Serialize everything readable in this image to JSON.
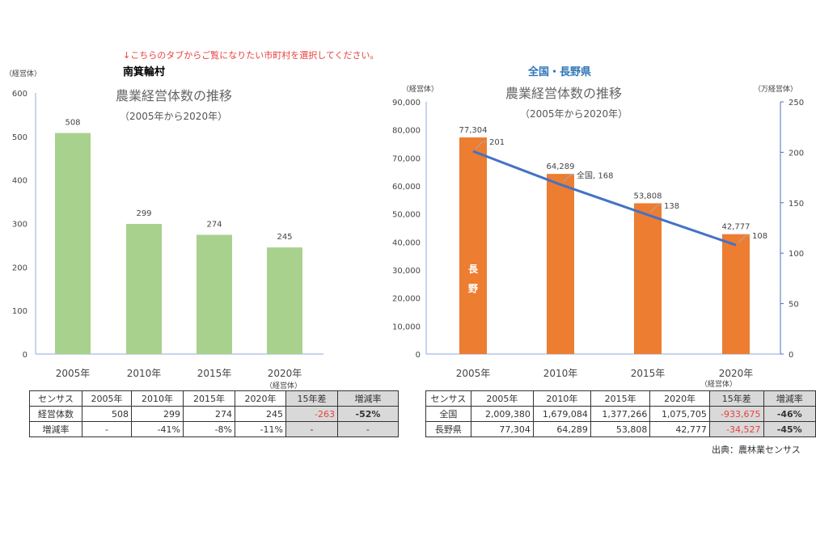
{
  "note": "↓こちらのタブからご覧になりたい市町村を選択してください。",
  "source": "出典：農林業センサス",
  "chart_data": [
    {
      "type": "bar",
      "header": "南箕輪村",
      "title": "農業経営体数の推移",
      "subtitle": "（2005年から2020年）",
      "ylabel": "（経営体）",
      "xunit": "（経営体）",
      "categories": [
        "2005年",
        "2010年",
        "2015年",
        "2020年"
      ],
      "values": [
        508,
        299,
        274,
        245
      ],
      "ylim": [
        0,
        600
      ],
      "yticks": [
        0,
        100,
        200,
        300,
        400,
        500,
        600
      ],
      "color": "#a9d18e",
      "grid": false
    },
    {
      "type": "bar+line",
      "header": "全国・長野県",
      "title": "農業経営体数の推移",
      "subtitle": "（2005年から2020年）",
      "ylabel": "（経営体）",
      "y2label": "（万経営体）",
      "xunit": "（経営体）",
      "categories": [
        "2005年",
        "2010年",
        "2015年",
        "2020年"
      ],
      "bar_label": "長野",
      "series": [
        {
          "name": "長野",
          "axis": "left",
          "values": [
            77304,
            64289,
            53808,
            42777
          ],
          "labels": [
            "77,304",
            "64,289",
            "53,808",
            "42,777"
          ],
          "color": "#ed7d31"
        },
        {
          "name": "全国",
          "axis": "right",
          "values": [
            201,
            168,
            138,
            108
          ],
          "labels": [
            "201",
            "全国, 168",
            "138",
            "108"
          ],
          "color": "#4472c4"
        }
      ],
      "ylim": [
        0,
        90000
      ],
      "yticks": [
        "0",
        "10,000",
        "20,000",
        "30,000",
        "40,000",
        "50,000",
        "60,000",
        "70,000",
        "80,000",
        "90,000"
      ],
      "y2lim": [
        0,
        250
      ],
      "y2ticks": [
        "0",
        "50",
        "100",
        "150",
        "200",
        "250"
      ],
      "grid": false
    }
  ],
  "table_left": {
    "header": [
      "センサス",
      "2005年",
      "2010年",
      "2015年",
      "2020年",
      "15年差",
      "増減率"
    ],
    "rows": [
      [
        "経営体数",
        "508",
        "299",
        "274",
        "245",
        "-263",
        "-52%"
      ],
      [
        "増減率",
        "-",
        "-41%",
        "-8%",
        "-11%",
        "-",
        "-"
      ]
    ]
  },
  "table_right": {
    "header": [
      "センサス",
      "2005年",
      "2010年",
      "2015年",
      "2020年",
      "15年差",
      "増減率"
    ],
    "rows": [
      [
        "全国",
        "2,009,380",
        "1,679,084",
        "1,377,266",
        "1,075,705",
        "-933,675",
        "-46%"
      ],
      [
        "長野県",
        "77,304",
        "64,289",
        "53,808",
        "42,777",
        "-34,527",
        "-45%"
      ]
    ]
  }
}
